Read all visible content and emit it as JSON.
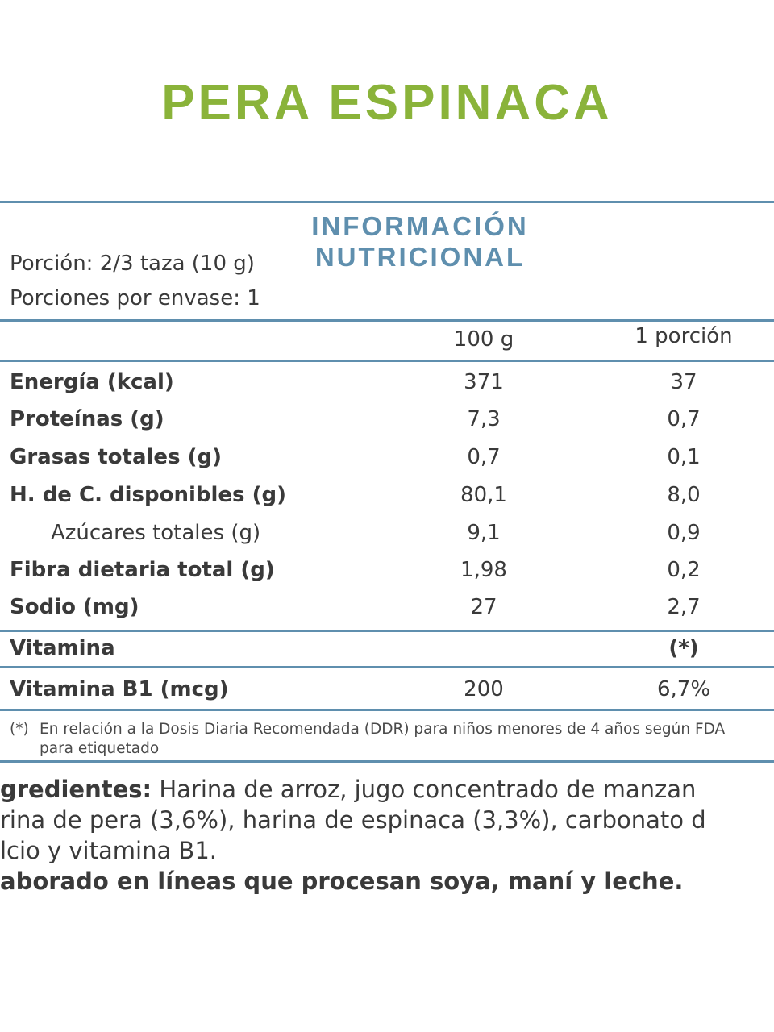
{
  "product_title": "PERA ESPINACA",
  "panel_title": "INFORMACIÓN NUTRICIONAL",
  "serving": "Porción: 2/3 taza  (10 g)",
  "servings_per_container": "Porciones por envase: 1",
  "columns": [
    "100 g",
    "1 porción"
  ],
  "nutrients": [
    {
      "label": "Energía (kcal)",
      "per100": "371",
      "perServing": "37"
    },
    {
      "label": "Proteínas (g)",
      "per100": "7,3",
      "perServing": "0,7"
    },
    {
      "label": "Grasas totales (g)",
      "per100": "0,7",
      "perServing": "0,1"
    },
    {
      "label": "H. de C. disponibles (g)",
      "per100": "80,1",
      "perServing": "8,0"
    },
    {
      "label": "Azúcares totales (g)",
      "per100": "9,1",
      "perServing": "0,9"
    },
    {
      "label": "Fibra dietaria total (g)",
      "per100": "1,98",
      "perServing": "0,2"
    },
    {
      "label": "Sodio (mg)",
      "per100": "27",
      "perServing": "2,7"
    }
  ],
  "vitamin_header": {
    "label": "Vitamina",
    "mark": "(*)"
  },
  "vitamins": [
    {
      "label": "Vitamina B1 (mcg)",
      "per100": "200",
      "perServing": "6,7%"
    }
  ],
  "footnote": {
    "mark": "(*)",
    "text": "En relación a la Dosis Diaria Recomendada (DDR) para niños menores de 4 años según FDA para etiquetado"
  },
  "ingredients": {
    "line1_label": "gredientes:",
    "line1_text": " Harina de arroz, jugo concentrado de manzan",
    "line2": "rina de pera (3,6%), harina de espinaca (3,3%), carbonato d",
    "line3": "lcio y vitamina B1.",
    "line4": "aborado en líneas que procesan soya, maní y leche."
  },
  "colors": {
    "title_green": "#8ab33a",
    "panel_blue": "#5f8fae",
    "text": "#3a3a3a"
  }
}
